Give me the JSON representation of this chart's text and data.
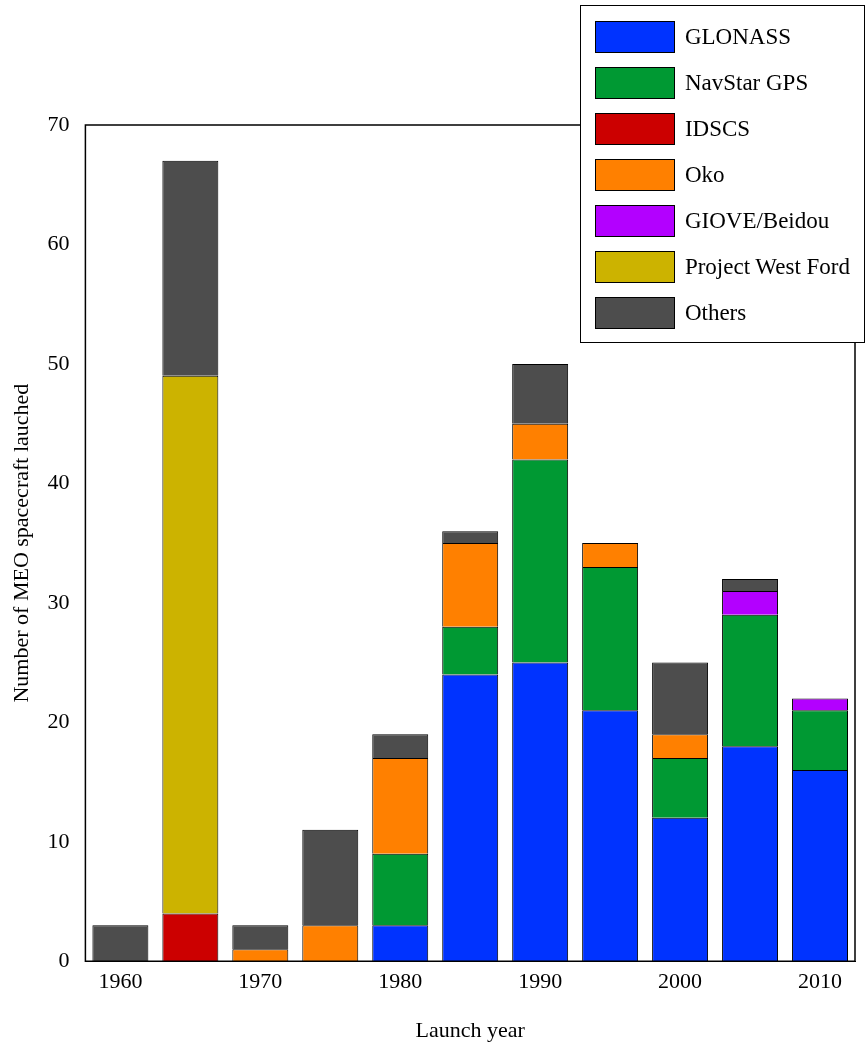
{
  "chart_data": {
    "type": "bar",
    "stacked": true,
    "xlabel": "Launch year",
    "ylabel": "Number of MEO spacecraft lauched",
    "categories": [
      "1960",
      null,
      "1970",
      null,
      "1980",
      null,
      "1990",
      null,
      "2000",
      null,
      "2010"
    ],
    "series": [
      {
        "name": "GLONASS",
        "color": "#0033ff",
        "values": [
          0,
          0,
          0,
          0,
          3,
          24,
          25,
          21,
          12,
          18,
          16
        ]
      },
      {
        "name": "NavStar GPS",
        "color": "#009933",
        "values": [
          0,
          0,
          0,
          0,
          6,
          4,
          17,
          12,
          5,
          11,
          5
        ]
      },
      {
        "name": "IDSCS",
        "color": "#cc0000",
        "values": [
          0,
          4,
          0,
          0,
          0,
          0,
          0,
          0,
          0,
          0,
          0
        ]
      },
      {
        "name": "Oko",
        "color": "#ff8000",
        "values": [
          0,
          0,
          1,
          3,
          8,
          7,
          3,
          2,
          2,
          0,
          0
        ]
      },
      {
        "name": "GIOVE/Beidou",
        "color": "#b300ff",
        "values": [
          0,
          0,
          0,
          0,
          0,
          0,
          0,
          0,
          0,
          2,
          1
        ]
      },
      {
        "name": "Project West Ford",
        "color": "#ccb300",
        "values": [
          0,
          45,
          0,
          0,
          0,
          0,
          0,
          0,
          0,
          0,
          0
        ]
      },
      {
        "name": "Others",
        "color": "#4d4d4d",
        "values": [
          3,
          18,
          2,
          8,
          2,
          1,
          5,
          0,
          6,
          1,
          0
        ]
      }
    ],
    "ylim": [
      0,
      70
    ],
    "yticks": [
      0,
      10,
      20,
      30,
      40,
      50,
      60,
      70
    ],
    "grid": false,
    "legend": "top right"
  }
}
